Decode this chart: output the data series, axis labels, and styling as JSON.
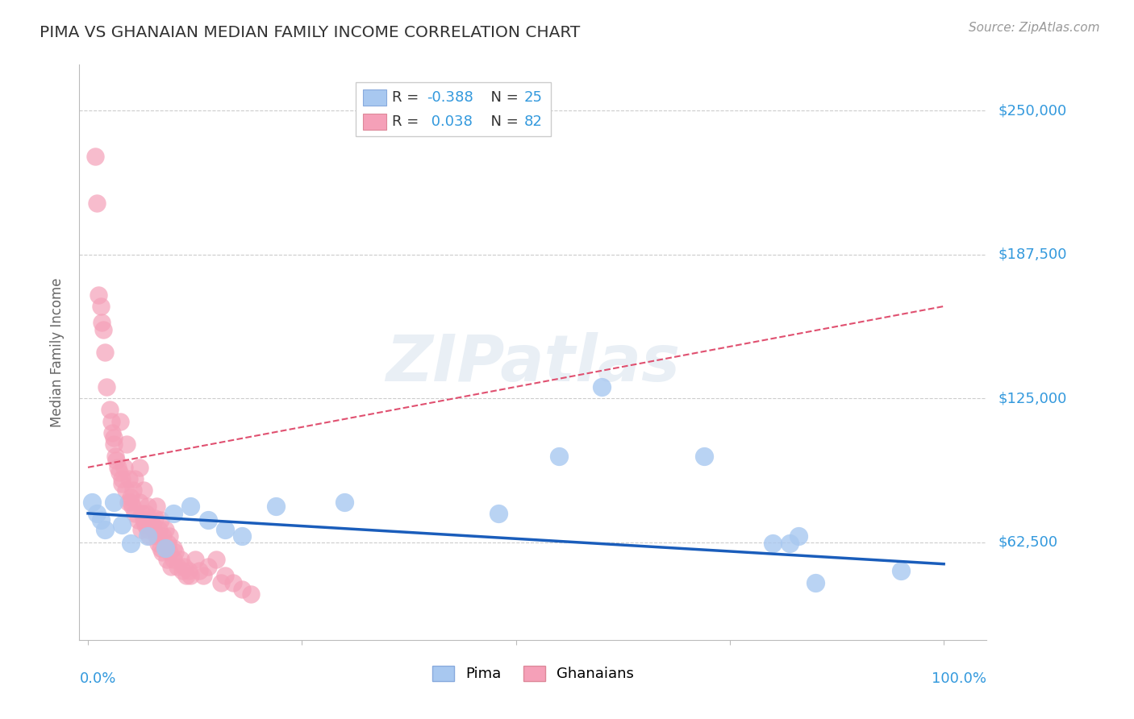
{
  "title": "PIMA VS GHANAIAN MEDIAN FAMILY INCOME CORRELATION CHART",
  "source": "Source: ZipAtlas.com",
  "ylabel": "Median Family Income",
  "yticks": [
    62500,
    125000,
    187500,
    250000
  ],
  "ytick_labels": [
    "$62,500",
    "$125,000",
    "$187,500",
    "$250,000"
  ],
  "ylim": [
    20000,
    270000
  ],
  "xlim": [
    -0.01,
    1.05
  ],
  "pima_R": -0.388,
  "pima_N": 25,
  "ghanaian_R": 0.038,
  "ghanaian_N": 82,
  "pima_color": "#a8c8f0",
  "ghanaian_color": "#f5a0b8",
  "pima_line_color": "#1a5dbb",
  "ghanaian_line_color": "#e05070",
  "background_color": "#ffffff",
  "grid_color": "#cccccc",
  "tick_label_color": "#3399dd",
  "title_color": "#333333",
  "source_color": "#999999",
  "pima_x": [
    0.005,
    0.01,
    0.015,
    0.02,
    0.03,
    0.04,
    0.05,
    0.07,
    0.09,
    0.1,
    0.12,
    0.14,
    0.16,
    0.18,
    0.22,
    0.3,
    0.48,
    0.55,
    0.6,
    0.72,
    0.8,
    0.82,
    0.83,
    0.85,
    0.95
  ],
  "pima_y": [
    80000,
    75000,
    72000,
    68000,
    80000,
    70000,
    62000,
    65000,
    60000,
    75000,
    78000,
    72000,
    68000,
    65000,
    78000,
    80000,
    75000,
    100000,
    130000,
    100000,
    62000,
    62000,
    65000,
    45000,
    50000
  ],
  "ghana_x": [
    0.008,
    0.01,
    0.012,
    0.015,
    0.016,
    0.018,
    0.02,
    0.022,
    0.025,
    0.027,
    0.028,
    0.03,
    0.03,
    0.032,
    0.033,
    0.035,
    0.037,
    0.038,
    0.04,
    0.04,
    0.042,
    0.044,
    0.045,
    0.047,
    0.048,
    0.05,
    0.05,
    0.052,
    0.053,
    0.055,
    0.055,
    0.058,
    0.06,
    0.06,
    0.062,
    0.063,
    0.065,
    0.065,
    0.067,
    0.068,
    0.07,
    0.07,
    0.072,
    0.073,
    0.075,
    0.076,
    0.078,
    0.08,
    0.08,
    0.082,
    0.083,
    0.085,
    0.085,
    0.087,
    0.088,
    0.09,
    0.09,
    0.092,
    0.093,
    0.095,
    0.095,
    0.097,
    0.1,
    0.1,
    0.102,
    0.105,
    0.108,
    0.11,
    0.112,
    0.115,
    0.118,
    0.12,
    0.125,
    0.13,
    0.135,
    0.14,
    0.15,
    0.155,
    0.16,
    0.17,
    0.18,
    0.19
  ],
  "ghana_y": [
    230000,
    210000,
    170000,
    165000,
    158000,
    155000,
    145000,
    130000,
    120000,
    115000,
    110000,
    108000,
    105000,
    100000,
    98000,
    95000,
    93000,
    115000,
    90000,
    88000,
    95000,
    85000,
    105000,
    80000,
    90000,
    80000,
    82000,
    78000,
    85000,
    75000,
    90000,
    72000,
    95000,
    80000,
    68000,
    75000,
    72000,
    85000,
    70000,
    75000,
    68000,
    78000,
    65000,
    72000,
    70000,
    68000,
    73000,
    65000,
    78000,
    62000,
    68000,
    60000,
    72000,
    58000,
    65000,
    60000,
    68000,
    55000,
    62000,
    58000,
    65000,
    52000,
    60000,
    55000,
    58000,
    52000,
    55000,
    50000,
    52000,
    48000,
    50000,
    48000,
    55000,
    50000,
    48000,
    52000,
    55000,
    45000,
    48000,
    45000,
    42000,
    40000
  ]
}
